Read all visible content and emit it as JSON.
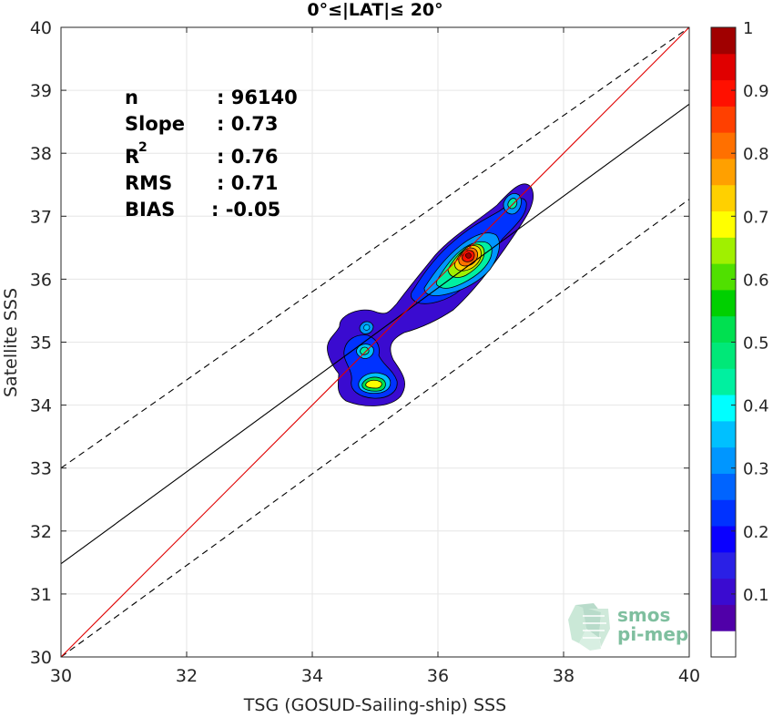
{
  "chart_data": {
    "type": "heatmap",
    "title": "0°≤|LAT|≤ 20°",
    "xlabel": "TSG (GOSUD-Sailing-ship) SSS",
    "ylabel": "Satellite SSS",
    "xlim": [
      30,
      40
    ],
    "ylim": [
      30,
      40
    ],
    "xticks": [
      30,
      32,
      34,
      36,
      38,
      40
    ],
    "yticks": [
      30,
      31,
      32,
      33,
      34,
      35,
      36,
      37,
      38,
      39,
      40
    ],
    "grid": true,
    "stats": {
      "n_label": "n",
      "n_value": ": 96140",
      "slope_label": "Slope",
      "slope_value": ": 0.73",
      "r2_label": "R",
      "r2_sup": "2",
      "r2_value": ": 0.76",
      "rms_label": "RMS",
      "rms_value": ": 0.71",
      "bias_label": "BIAS",
      "bias_value": ": -0.05"
    },
    "lines": {
      "identity": {
        "x": [
          30,
          40
        ],
        "y": [
          30,
          40
        ],
        "color": "#e00000"
      },
      "fit": {
        "x": [
          30,
          40
        ],
        "y": [
          31.48,
          38.78
        ],
        "color": "#000000"
      },
      "upper_bound": {
        "x": [
          30,
          40
        ],
        "y": [
          33.0,
          40.0
        ],
        "color": "#000000",
        "dash": true
      },
      "lower_bound": {
        "x": [
          30,
          40
        ],
        "y": [
          30.0,
          37.27
        ],
        "color": "#000000",
        "dash": true
      }
    },
    "colorbar": {
      "range": [
        0,
        1
      ],
      "ticks": [
        "0.1",
        "0.2",
        "0.3",
        "0.4",
        "0.5",
        "0.6",
        "0.7",
        "0.8",
        "0.9",
        "1"
      ],
      "colors": [
        "#ffffff",
        "#5000a8",
        "#3a0bd0",
        "#2a20e6",
        "#0a00ff",
        "#0032ff",
        "#0064ff",
        "#0096ff",
        "#00c0ff",
        "#00ffff",
        "#00f0a0",
        "#00e878",
        "#00e050",
        "#00d000",
        "#50e000",
        "#a0f000",
        "#ffff00",
        "#ffd000",
        "#ffa000",
        "#ff7000",
        "#ff4000",
        "#ff1000",
        "#e00000",
        "#a00000"
      ]
    },
    "density_blobs": [
      {
        "x": 36.55,
        "y": 36.35,
        "level": 0.12
      },
      {
        "x": 36.45,
        "y": 36.38,
        "level": 0.25
      },
      {
        "x": 36.42,
        "y": 36.38,
        "level": 0.45
      },
      {
        "x": 36.42,
        "y": 36.4,
        "level": 0.62
      },
      {
        "x": 36.43,
        "y": 36.42,
        "level": 0.78
      },
      {
        "x": 36.45,
        "y": 36.43,
        "level": 0.92
      },
      {
        "x": 34.85,
        "y": 34.85,
        "level": 0.12
      },
      {
        "x": 34.85,
        "y": 34.85,
        "level": 0.3
      },
      {
        "x": 34.95,
        "y": 34.32,
        "level": 0.35
      },
      {
        "x": 34.95,
        "y": 34.32,
        "level": 0.55
      },
      {
        "x": 37.15,
        "y": 37.15,
        "level": 0.3
      },
      {
        "x": 37.15,
        "y": 37.15,
        "level": 0.45
      }
    ]
  },
  "logo": {
    "line1": "smos",
    "line2": "pi-mep"
  }
}
